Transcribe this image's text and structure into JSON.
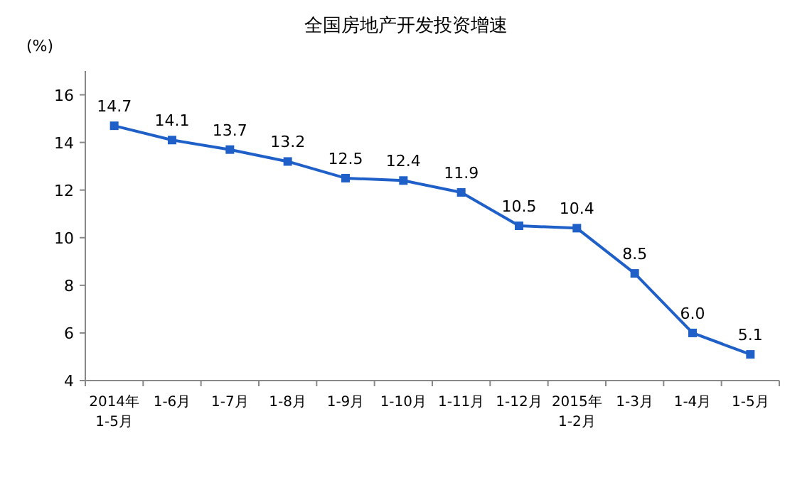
{
  "chart_data": {
    "type": "line",
    "title": "全国房地产开发投资增速",
    "ylabel": "(%)",
    "categories": [
      "2014年\n1-5月",
      "1-6月",
      "1-7月",
      "1-8月",
      "1-9月",
      "1-10月",
      "1-11月",
      "1-12月",
      "2015年\n1-2月",
      "1-3月",
      "1-4月",
      "1-5月"
    ],
    "series": [
      {
        "color": "#1f5fc8",
        "values": [
          14.7,
          14.1,
          13.7,
          13.2,
          12.5,
          12.4,
          11.9,
          10.5,
          10.4,
          8.5,
          6.0,
          5.1
        ],
        "value_labels": [
          "14.7",
          "14.1",
          "13.7",
          "13.2",
          "12.5",
          "12.4",
          "11.9",
          "10.5",
          "10.4",
          "8.5",
          "6.0",
          "5.1"
        ]
      }
    ],
    "ylim": [
      4,
      17
    ],
    "yticks": [
      4,
      6,
      8,
      10,
      12,
      14,
      16
    ],
    "marker": "square",
    "line_style": "solid",
    "grid": false
  }
}
